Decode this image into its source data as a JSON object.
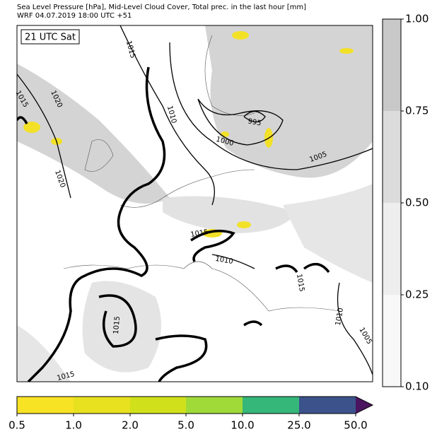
{
  "header": {
    "line1": "Sea Level Pressure [hPa], Mid-Level Cloud Cover, Total prec. in the last hour [mm]",
    "line2": "WRF 04.07.2019 18:00 UTC +51"
  },
  "time_label": "21 UTC Sat",
  "contour_labels": [
    "1015",
    "1015",
    "1020",
    "1010",
    "995",
    "1000",
    "1005",
    "1020",
    "1015",
    "1010",
    "1015",
    "1015",
    "1010",
    "1005",
    "1015"
  ],
  "cloud_colorbar": {
    "ticks": [
      "1.00",
      "0.75",
      "0.50",
      "0.25",
      "0.10"
    ]
  },
  "precip_colorbar": {
    "ticks": [
      "0.5",
      "1.0",
      "2.0",
      "5.0",
      "10.0",
      "25.0",
      "50.0"
    ]
  }
}
